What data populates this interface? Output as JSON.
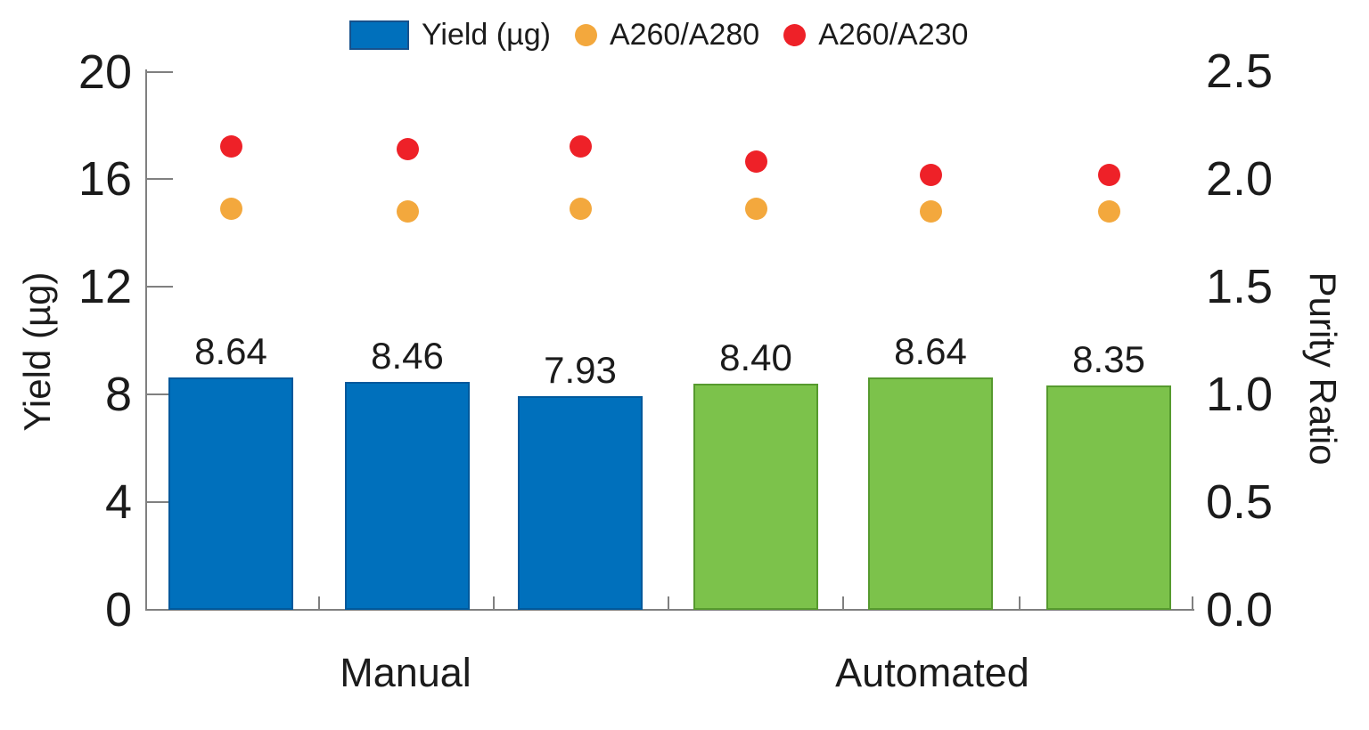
{
  "chart_data": {
    "type": "bar",
    "title": "",
    "categories": [
      "Manual",
      "Automated"
    ],
    "bar_series": {
      "name": "Yield (µg)",
      "value_labels": [
        "8.64",
        "8.46",
        "7.93",
        "8.40",
        "8.64",
        "8.35"
      ],
      "values": [
        8.64,
        8.46,
        7.93,
        8.4,
        8.64,
        8.35
      ],
      "group_of_bar": [
        "Manual",
        "Manual",
        "Manual",
        "Automated",
        "Automated",
        "Automated"
      ],
      "group_colors": {
        "Manual": {
          "fill": "#0070BC",
          "border": "#00599C"
        },
        "Automated": {
          "fill": "#7CC24B",
          "border": "#569A2E"
        }
      }
    },
    "scatter_series": [
      {
        "name": "A260/A280",
        "color": "#F3A83D",
        "values": [
          1.86,
          1.85,
          1.86,
          1.86,
          1.85,
          1.85
        ]
      },
      {
        "name": "A260/A230",
        "color": "#EE2128",
        "values": [
          2.15,
          2.14,
          2.15,
          2.08,
          2.02,
          2.02
        ]
      }
    ],
    "left_axis": {
      "title": "Yield (µg)",
      "tick_labels": [
        "0",
        "4",
        "8",
        "12",
        "16",
        "20"
      ],
      "tick_values": [
        0,
        4,
        8,
        12,
        16,
        20
      ],
      "range": [
        0,
        20
      ]
    },
    "right_axis": {
      "title": "Purity Ratio",
      "tick_labels": [
        "0.0",
        "0.5",
        "1.0",
        "1.5",
        "2.0",
        "2.5"
      ],
      "tick_values": [
        0,
        0.5,
        1.0,
        1.5,
        2.0,
        2.5
      ],
      "range": [
        0,
        2.5
      ]
    },
    "legend": [
      {
        "label": "Yield (µg)",
        "marker": "square",
        "color": "#0070BC"
      },
      {
        "label": "A260/A280",
        "marker": "circle",
        "color": "#F3A83D"
      },
      {
        "label": "A260/A230",
        "marker": "circle",
        "color": "#EE2128"
      }
    ],
    "style": {
      "axis_color": "#808080",
      "text_color": "#1B1B1B",
      "grid": "off",
      "legend_position": "top"
    }
  }
}
